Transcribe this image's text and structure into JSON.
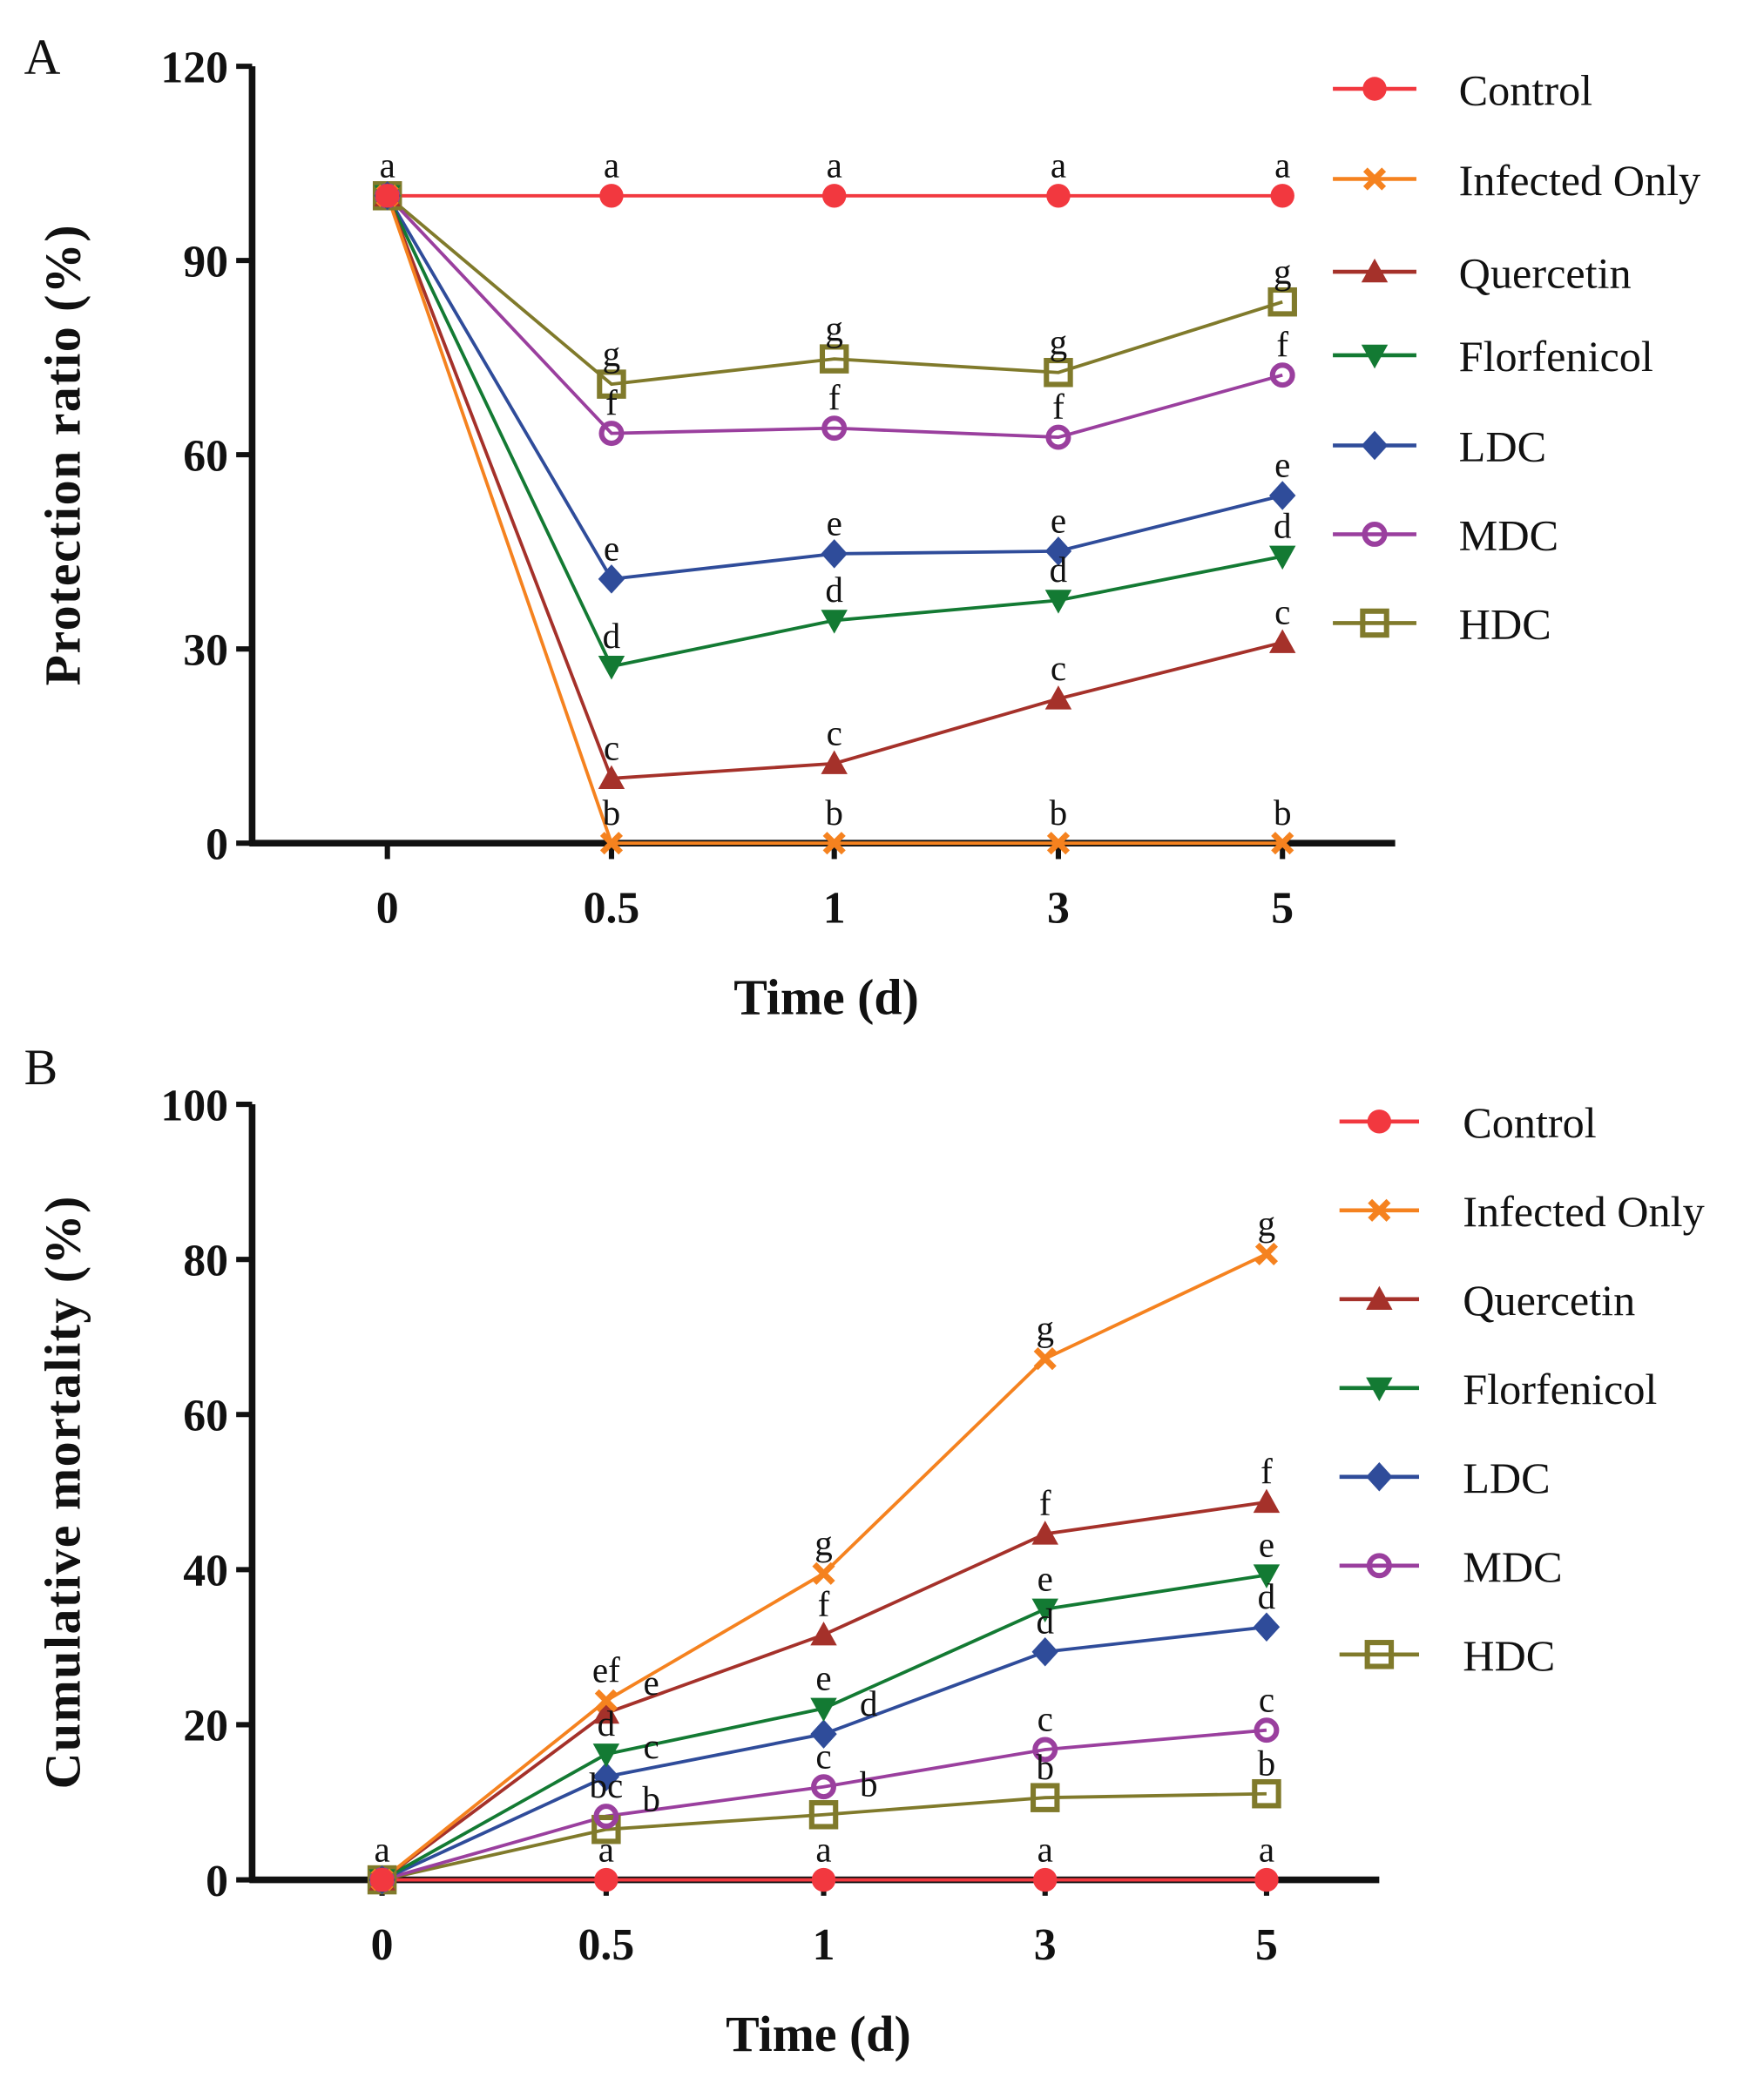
{
  "chart_data": [
    {
      "type": "line",
      "panel_label": "A",
      "xlabel": "Time (d)",
      "ylabel": "Protection ratio (%)",
      "categories": [
        "0",
        "0.5",
        "1",
        "3",
        "5"
      ],
      "ylim": [
        0,
        120
      ],
      "yticks": [
        0,
        30,
        60,
        90,
        120
      ],
      "grid": false,
      "legend": "right",
      "series": [
        {
          "name": "Control",
          "color": "#f2383f",
          "marker": "circle",
          "values": [
            100,
            100,
            100,
            100,
            100
          ],
          "letters": [
            "a",
            "a",
            "a",
            "a",
            "a"
          ]
        },
        {
          "name": "Infected Only",
          "color": "#f5821f",
          "marker": "x",
          "values": [
            100,
            0,
            0,
            0,
            0
          ],
          "letters": [
            "",
            "b",
            "b",
            "b",
            "b"
          ]
        },
        {
          "name": "Quercetin",
          "color": "#a5312a",
          "marker": "triangle-up",
          "values": [
            100,
            10.0,
            12.3,
            22.3,
            31.0
          ],
          "letters": [
            "",
            "c",
            "c",
            "c",
            "c"
          ]
        },
        {
          "name": "Florfenicol",
          "color": "#137a33",
          "marker": "triangle-down",
          "values": [
            100,
            27.3,
            34.4,
            37.5,
            44.3
          ],
          "letters": [
            "",
            "d",
            "d",
            "d",
            "d"
          ]
        },
        {
          "name": "LDC",
          "color": "#2f4c9a",
          "marker": "diamond",
          "values": [
            100,
            40.8,
            44.7,
            45.1,
            53.7
          ],
          "letters": [
            "",
            "e",
            "e",
            "e",
            "e"
          ]
        },
        {
          "name": "MDC",
          "color": "#9a3f9e",
          "marker": "open-circle",
          "values": [
            100,
            63.3,
            64.1,
            62.7,
            72.3
          ],
          "letters": [
            "",
            "f",
            "f",
            "f",
            "f"
          ]
        },
        {
          "name": "HDC",
          "color": "#807a2b",
          "marker": "open-square",
          "values": [
            100,
            70.9,
            74.8,
            72.7,
            83.6
          ],
          "letters": [
            "",
            "g",
            "g",
            "g",
            "g"
          ]
        }
      ]
    },
    {
      "type": "line",
      "panel_label": "B",
      "xlabel": "Time (d)",
      "ylabel": "Cumulative mortality (%)",
      "categories": [
        "0",
        "0.5",
        "1",
        "3",
        "5"
      ],
      "ylim": [
        0,
        100
      ],
      "yticks": [
        0,
        20,
        40,
        60,
        80,
        100
      ],
      "grid": false,
      "legend": "right",
      "series": [
        {
          "name": "Control",
          "color": "#f2383f",
          "marker": "circle",
          "values": [
            0,
            0,
            0,
            0,
            0
          ],
          "letters": [
            "a",
            "a",
            "a",
            "a",
            "a"
          ]
        },
        {
          "name": "Infected Only",
          "color": "#f5821f",
          "marker": "x",
          "values": [
            0,
            23.1,
            39.5,
            67.2,
            80.7
          ],
          "letters": [
            "",
            "ef",
            "g",
            "g",
            "g"
          ]
        },
        {
          "name": "Quercetin",
          "color": "#a5312a",
          "marker": "triangle-up",
          "values": [
            0,
            21.5,
            31.6,
            44.6,
            48.7
          ],
          "letters": [
            "",
            "e",
            "f",
            "f",
            "f"
          ]
        },
        {
          "name": "Florfenicol",
          "color": "#137a33",
          "marker": "triangle-down",
          "values": [
            0,
            16.2,
            22.1,
            34.9,
            39.3
          ],
          "letters": [
            "",
            "d",
            "e",
            "e",
            "e"
          ]
        },
        {
          "name": "LDC",
          "color": "#2f4c9a",
          "marker": "diamond",
          "values": [
            0,
            13.3,
            18.8,
            29.4,
            32.6
          ],
          "letters": [
            "",
            "c",
            "d",
            "d",
            "d"
          ]
        },
        {
          "name": "MDC",
          "color": "#9a3f9e",
          "marker": "open-circle",
          "values": [
            0,
            8.2,
            12.0,
            16.8,
            19.3
          ],
          "letters": [
            "",
            "bc",
            "c",
            "c",
            "c"
          ]
        },
        {
          "name": "HDC",
          "color": "#807a2b",
          "marker": "open-square",
          "values": [
            0,
            6.5,
            8.4,
            10.6,
            11.1
          ],
          "letters": [
            "",
            "b",
            "b",
            "b",
            "b"
          ]
        }
      ]
    }
  ]
}
